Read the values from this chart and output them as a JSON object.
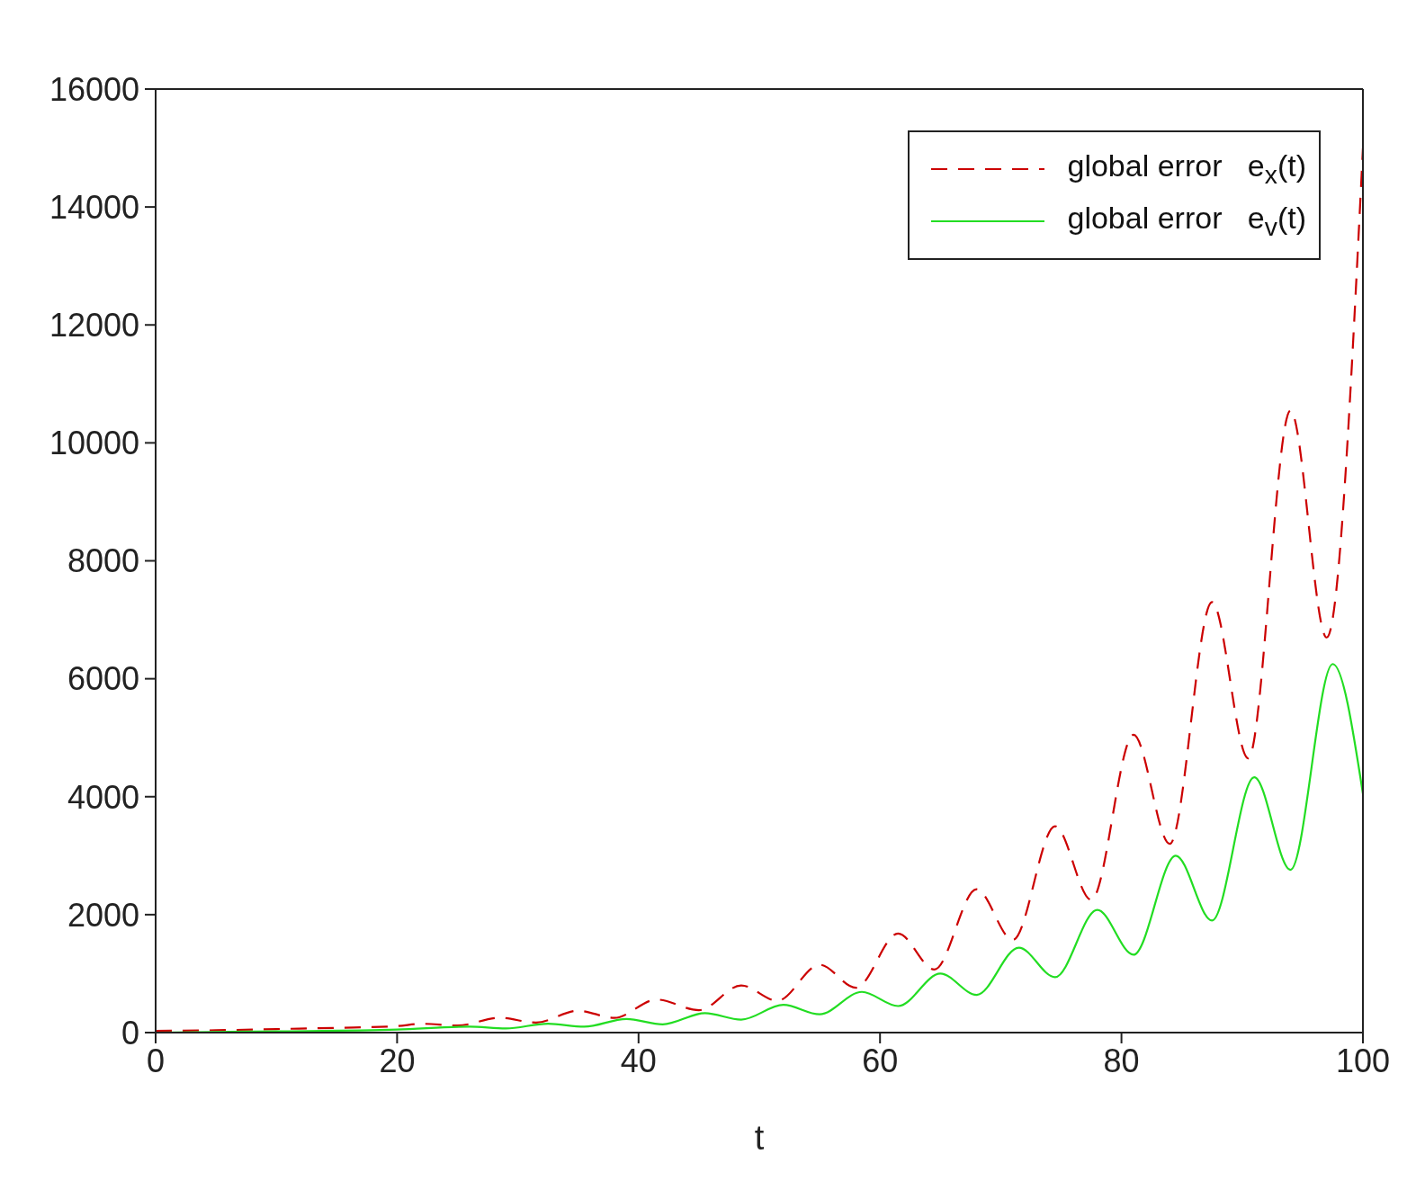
{
  "chart_data": {
    "type": "line",
    "xlabel": "t",
    "xlim": [
      0,
      100
    ],
    "xticks": [
      0,
      20,
      40,
      60,
      80,
      100
    ],
    "ylim": [
      0,
      16000
    ],
    "yticks": [
      0,
      2000,
      4000,
      6000,
      8000,
      10000,
      12000,
      14000,
      16000
    ],
    "legend": "top right",
    "marker": "none",
    "series": [
      {
        "name": "global error   e$_{x}$(t)",
        "color": "#cc0000",
        "line_style": "dashed",
        "x": [
          0,
          5,
          10,
          15,
          20,
          22,
          25,
          28.5,
          31.5,
          35,
          38,
          41.5,
          45,
          48.5,
          51.5,
          55,
          58,
          61.5,
          64.5,
          68,
          71,
          74.5,
          77.5,
          81,
          84,
          87.5,
          90.5,
          94,
          97,
          100
        ],
        "values": [
          30,
          40,
          60,
          80,
          110,
          150,
          120,
          250,
          170,
          370,
          250,
          560,
          380,
          800,
          540,
          1150,
          760,
          1680,
          1070,
          2430,
          1570,
          3500,
          2250,
          5050,
          3200,
          7300,
          4650,
          10550,
          6700,
          15000
        ]
      },
      {
        "name": "global error   e$_{v}$(t)",
        "color": "#22dd22",
        "line_style": "solid",
        "x": [
          0,
          10,
          20,
          26,
          29,
          32.5,
          35.5,
          39,
          42,
          45.5,
          48.5,
          52,
          55,
          58.5,
          61.5,
          65,
          68,
          71.5,
          74.5,
          78,
          81,
          84.5,
          87.5,
          91,
          94,
          97.5,
          100
        ],
        "values": [
          0,
          20,
          50,
          100,
          70,
          150,
          100,
          230,
          140,
          330,
          220,
          470,
          310,
          690,
          450,
          1000,
          640,
          1440,
          940,
          2080,
          1320,
          3000,
          1900,
          4330,
          2760,
          6250,
          4050
        ]
      }
    ]
  }
}
